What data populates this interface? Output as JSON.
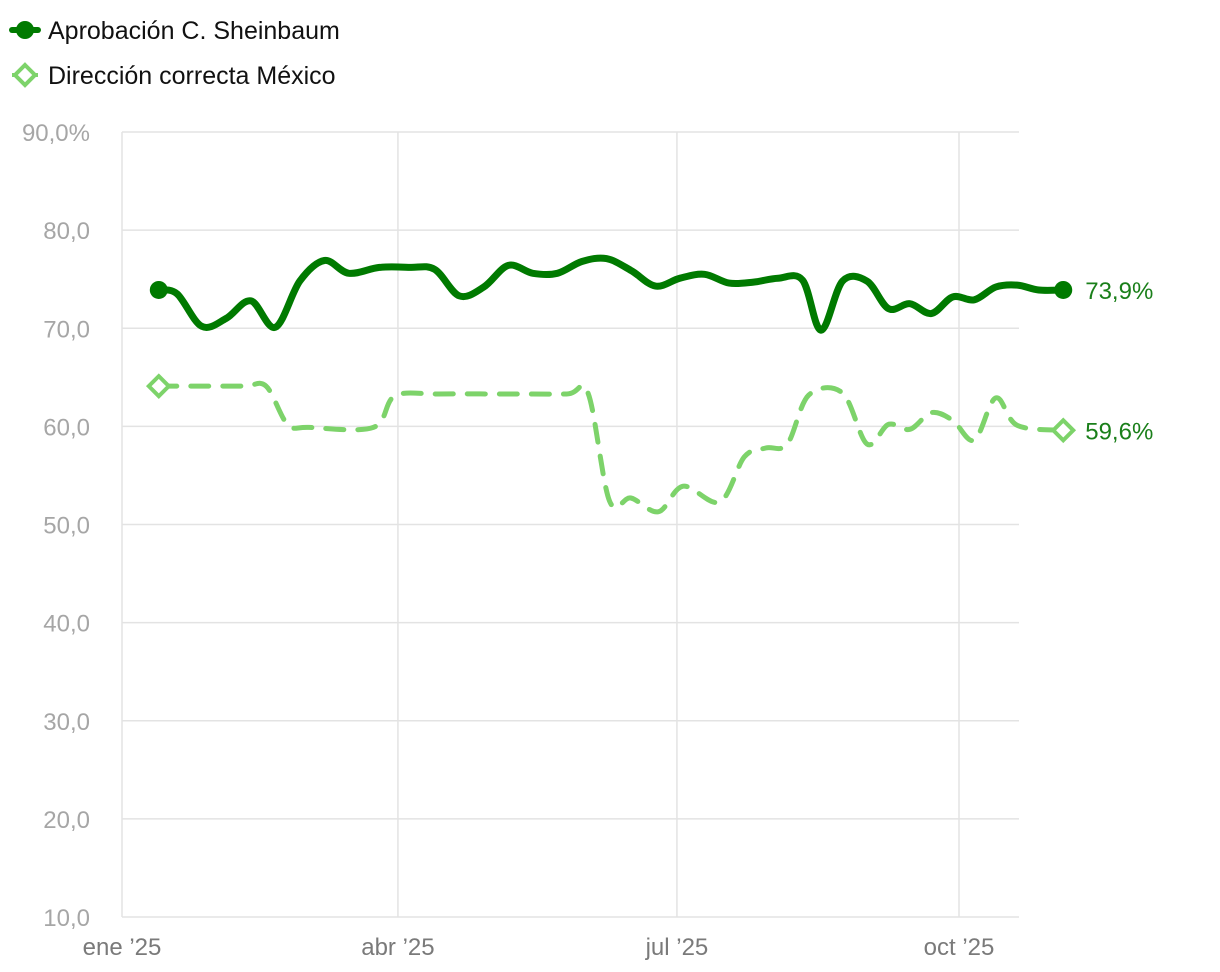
{
  "chart_data": {
    "type": "line",
    "ylim": [
      10,
      90
    ],
    "y_ticks": [
      10,
      20,
      30,
      40,
      50,
      60,
      70,
      80,
      90
    ],
    "y_tick_labels": [
      "10,0",
      "20,0",
      "30,0",
      "40,0",
      "50,0",
      "60,0",
      "70,0",
      "80,0",
      "90,0%"
    ],
    "xlim": [
      "2024-12-29",
      "2025-10-20"
    ],
    "x_ticks": [
      "2025-01-01",
      "2025-04-01",
      "2025-07-01",
      "2025-10-01"
    ],
    "x_tick_labels": [
      "ene ’25",
      "abr ’25",
      "jul ’25",
      "oct ’25"
    ],
    "grid": true,
    "legend_position": "top-left",
    "series": [
      {
        "name": "Aprobación C. Sheinbaum",
        "color": "#007a00",
        "style": "solid",
        "marker": "circle",
        "end_label": "73,9%",
        "points": [
          [
            "2025-01-13",
            73.9
          ],
          [
            "2025-01-19",
            73.5
          ],
          [
            "2025-01-27",
            70.2
          ],
          [
            "2025-02-04",
            71.0
          ],
          [
            "2025-02-12",
            72.8
          ],
          [
            "2025-02-20",
            70.1
          ],
          [
            "2025-02-28",
            74.8
          ],
          [
            "2025-03-08",
            76.9
          ],
          [
            "2025-03-16",
            75.6
          ],
          [
            "2025-03-26",
            76.2
          ],
          [
            "2025-04-05",
            76.2
          ],
          [
            "2025-04-13",
            76.0
          ],
          [
            "2025-04-21",
            73.3
          ],
          [
            "2025-04-29",
            74.2
          ],
          [
            "2025-05-07",
            76.4
          ],
          [
            "2025-05-15",
            75.6
          ],
          [
            "2025-05-23",
            75.6
          ],
          [
            "2025-05-31",
            76.8
          ],
          [
            "2025-06-08",
            77.1
          ],
          [
            "2025-06-16",
            75.9
          ],
          [
            "2025-06-24",
            74.3
          ],
          [
            "2025-07-02",
            75.1
          ],
          [
            "2025-07-10",
            75.5
          ],
          [
            "2025-07-18",
            74.6
          ],
          [
            "2025-07-26",
            74.7
          ],
          [
            "2025-08-03",
            75.1
          ],
          [
            "2025-08-11",
            74.9
          ],
          [
            "2025-08-17",
            69.8
          ],
          [
            "2025-08-24",
            74.8
          ],
          [
            "2025-09-01",
            74.8
          ],
          [
            "2025-09-08",
            72.0
          ],
          [
            "2025-09-15",
            72.5
          ],
          [
            "2025-09-22",
            71.5
          ],
          [
            "2025-09-29",
            73.2
          ],
          [
            "2025-10-06",
            72.9
          ],
          [
            "2025-10-13",
            74.2
          ],
          [
            "2025-10-20",
            74.4
          ],
          [
            "2025-10-27",
            73.9
          ],
          [
            "2025-11-04",
            73.9
          ]
        ]
      },
      {
        "name": "Dirección correcta México",
        "color": "#7dd36a",
        "style": "dashed",
        "marker": "diamond",
        "end_label": "59,6%",
        "points": [
          [
            "2025-01-13",
            64.1
          ],
          [
            "2025-01-27",
            64.1
          ],
          [
            "2025-02-10",
            64.1
          ],
          [
            "2025-02-17",
            64.1
          ],
          [
            "2025-02-24",
            60.2
          ],
          [
            "2025-03-03",
            59.9
          ],
          [
            "2025-03-24",
            59.9
          ],
          [
            "2025-03-31",
            63.1
          ],
          [
            "2025-04-14",
            63.3
          ],
          [
            "2025-05-05",
            63.3
          ],
          [
            "2025-05-26",
            63.3
          ],
          [
            "2025-06-02",
            63.4
          ],
          [
            "2025-06-09",
            52.4
          ],
          [
            "2025-06-16",
            52.7
          ],
          [
            "2025-06-25",
            51.3
          ],
          [
            "2025-07-03",
            53.9
          ],
          [
            "2025-07-15",
            52.3
          ],
          [
            "2025-07-23",
            56.9
          ],
          [
            "2025-07-30",
            57.8
          ],
          [
            "2025-08-06",
            58.2
          ],
          [
            "2025-08-13",
            63.2
          ],
          [
            "2025-08-24",
            63.4
          ],
          [
            "2025-09-01",
            58.2
          ],
          [
            "2025-09-08",
            60.2
          ],
          [
            "2025-09-15",
            59.7
          ],
          [
            "2025-09-22",
            61.4
          ],
          [
            "2025-09-29",
            60.6
          ],
          [
            "2025-10-06",
            58.6
          ],
          [
            "2025-10-13",
            62.9
          ],
          [
            "2025-10-20",
            60.1
          ],
          [
            "2025-11-04",
            59.6
          ]
        ]
      }
    ]
  }
}
